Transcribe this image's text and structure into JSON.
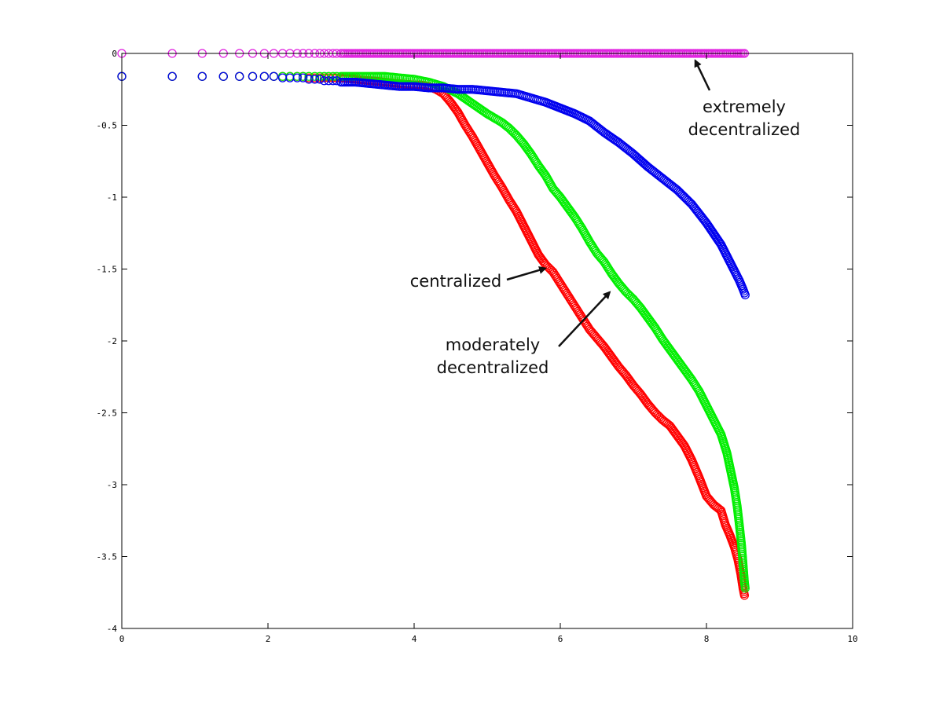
{
  "chart_data": {
    "type": "scatter",
    "title": "",
    "xlabel": "",
    "ylabel": "",
    "xlim": [
      0,
      10
    ],
    "ylim": [
      -4,
      0
    ],
    "xticks": [
      0,
      2,
      4,
      6,
      8,
      10
    ],
    "yticks": [
      0,
      -0.5,
      -1,
      -1.5,
      -2,
      -2.5,
      -3,
      -3.5,
      -4
    ],
    "xtick_labels": [
      "0",
      "2",
      "4",
      "6",
      "8",
      "10"
    ],
    "ytick_labels": [
      "0",
      "-0.5",
      "-1",
      "-1.5",
      "-2",
      "-2.5",
      "-3",
      "-3.5",
      "-4"
    ],
    "grid": false,
    "legend": "none",
    "marker": "open-circle",
    "series": [
      {
        "color": "#e020e0",
        "points": [
          [
            0,
            0
          ],
          [
            0.69,
            0
          ],
          [
            1.1,
            0
          ],
          [
            1.39,
            0
          ],
          [
            1.61,
            0
          ],
          [
            1.79,
            0
          ],
          [
            1.95,
            0
          ],
          [
            2.08,
            0
          ],
          [
            2.2,
            0
          ],
          [
            2.3,
            0
          ],
          [
            2.4,
            0
          ],
          [
            2.48,
            0
          ],
          [
            2.56,
            0
          ],
          [
            2.64,
            0
          ],
          [
            2.71,
            0
          ],
          [
            2.77,
            0
          ],
          [
            2.83,
            0
          ],
          [
            2.89,
            0
          ],
          [
            2.94,
            0
          ],
          [
            3.0,
            0
          ],
          [
            3.1,
            0
          ],
          [
            3.2,
            0
          ],
          [
            3.3,
            0
          ],
          [
            3.4,
            0
          ],
          [
            3.5,
            0
          ],
          [
            3.6,
            0
          ],
          [
            3.7,
            0
          ],
          [
            3.8,
            0
          ],
          [
            3.9,
            0
          ],
          [
            4.0,
            0
          ],
          [
            4.2,
            0
          ],
          [
            4.4,
            0
          ],
          [
            4.6,
            0
          ],
          [
            4.8,
            0
          ],
          [
            5.0,
            0
          ],
          [
            5.2,
            0
          ],
          [
            5.4,
            0
          ],
          [
            5.6,
            0
          ],
          [
            5.8,
            0
          ],
          [
            6.0,
            0
          ],
          [
            6.2,
            0
          ],
          [
            6.4,
            0
          ],
          [
            6.6,
            0
          ],
          [
            6.8,
            0
          ],
          [
            7.0,
            0
          ],
          [
            7.2,
            0
          ],
          [
            7.4,
            0
          ],
          [
            7.6,
            0
          ],
          [
            7.8,
            0
          ],
          [
            8.0,
            0
          ],
          [
            8.2,
            0
          ],
          [
            8.4,
            0
          ],
          [
            8.52,
            0
          ]
        ]
      },
      {
        "color": "#ff0000",
        "points": [
          [
            0,
            -0.16
          ],
          [
            0.69,
            -0.16
          ],
          [
            1.1,
            -0.16
          ],
          [
            1.39,
            -0.16
          ],
          [
            1.61,
            -0.16
          ],
          [
            1.79,
            -0.16
          ],
          [
            1.95,
            -0.16
          ],
          [
            2.08,
            -0.16
          ],
          [
            2.2,
            -0.16
          ],
          [
            2.3,
            -0.16
          ],
          [
            2.4,
            -0.16
          ],
          [
            2.48,
            -0.16
          ],
          [
            2.56,
            -0.17
          ],
          [
            2.64,
            -0.17
          ],
          [
            2.71,
            -0.17
          ],
          [
            2.77,
            -0.17
          ],
          [
            2.83,
            -0.17
          ],
          [
            2.89,
            -0.17
          ],
          [
            2.94,
            -0.17
          ],
          [
            3.0,
            -0.17
          ],
          [
            3.2,
            -0.18
          ],
          [
            3.4,
            -0.19
          ],
          [
            3.6,
            -0.2
          ],
          [
            3.8,
            -0.21
          ],
          [
            4.0,
            -0.22
          ],
          [
            4.1,
            -0.22
          ],
          [
            4.2,
            -0.23
          ],
          [
            4.3,
            -0.25
          ],
          [
            4.4,
            -0.28
          ],
          [
            4.5,
            -0.34
          ],
          [
            4.6,
            -0.41
          ],
          [
            4.7,
            -0.5
          ],
          [
            4.8,
            -0.58
          ],
          [
            4.9,
            -0.67
          ],
          [
            5.0,
            -0.76
          ],
          [
            5.1,
            -0.85
          ],
          [
            5.2,
            -0.93
          ],
          [
            5.3,
            -1.02
          ],
          [
            5.4,
            -1.1
          ],
          [
            5.5,
            -1.2
          ],
          [
            5.6,
            -1.3
          ],
          [
            5.7,
            -1.4
          ],
          [
            5.8,
            -1.47
          ],
          [
            5.9,
            -1.52
          ],
          [
            6.0,
            -1.6
          ],
          [
            6.1,
            -1.68
          ],
          [
            6.2,
            -1.76
          ],
          [
            6.3,
            -1.84
          ],
          [
            6.4,
            -1.92
          ],
          [
            6.5,
            -1.98
          ],
          [
            6.6,
            -2.04
          ],
          [
            6.7,
            -2.11
          ],
          [
            6.8,
            -2.18
          ],
          [
            6.9,
            -2.24
          ],
          [
            7.0,
            -2.31
          ],
          [
            7.1,
            -2.37
          ],
          [
            7.2,
            -2.44
          ],
          [
            7.3,
            -2.5
          ],
          [
            7.4,
            -2.55
          ],
          [
            7.5,
            -2.59
          ],
          [
            7.6,
            -2.66
          ],
          [
            7.7,
            -2.73
          ],
          [
            7.8,
            -2.83
          ],
          [
            7.9,
            -2.95
          ],
          [
            8.0,
            -3.08
          ],
          [
            8.1,
            -3.14
          ],
          [
            8.2,
            -3.18
          ],
          [
            8.26,
            -3.28
          ],
          [
            8.32,
            -3.35
          ],
          [
            8.38,
            -3.43
          ],
          [
            8.43,
            -3.52
          ],
          [
            8.47,
            -3.62
          ],
          [
            8.5,
            -3.72
          ],
          [
            8.52,
            -3.77
          ]
        ]
      },
      {
        "color": "#00ee00",
        "points": [
          [
            0,
            -0.16
          ],
          [
            0.69,
            -0.16
          ],
          [
            1.1,
            -0.16
          ],
          [
            1.39,
            -0.16
          ],
          [
            1.61,
            -0.16
          ],
          [
            1.79,
            -0.16
          ],
          [
            1.95,
            -0.16
          ],
          [
            2.08,
            -0.16
          ],
          [
            2.2,
            -0.16
          ],
          [
            2.3,
            -0.16
          ],
          [
            2.4,
            -0.16
          ],
          [
            2.48,
            -0.16
          ],
          [
            2.56,
            -0.16
          ],
          [
            2.64,
            -0.16
          ],
          [
            2.71,
            -0.16
          ],
          [
            2.77,
            -0.16
          ],
          [
            2.83,
            -0.16
          ],
          [
            2.89,
            -0.16
          ],
          [
            2.94,
            -0.16
          ],
          [
            3.0,
            -0.16
          ],
          [
            3.2,
            -0.16
          ],
          [
            3.4,
            -0.16
          ],
          [
            3.6,
            -0.16
          ],
          [
            3.8,
            -0.17
          ],
          [
            4.0,
            -0.18
          ],
          [
            4.2,
            -0.2
          ],
          [
            4.4,
            -0.23
          ],
          [
            4.6,
            -0.28
          ],
          [
            4.8,
            -0.35
          ],
          [
            5.0,
            -0.42
          ],
          [
            5.2,
            -0.48
          ],
          [
            5.3,
            -0.52
          ],
          [
            5.4,
            -0.57
          ],
          [
            5.5,
            -0.63
          ],
          [
            5.6,
            -0.7
          ],
          [
            5.7,
            -0.78
          ],
          [
            5.8,
            -0.85
          ],
          [
            5.9,
            -0.94
          ],
          [
            6.0,
            -1.0
          ],
          [
            6.1,
            -1.07
          ],
          [
            6.2,
            -1.14
          ],
          [
            6.3,
            -1.22
          ],
          [
            6.4,
            -1.31
          ],
          [
            6.5,
            -1.39
          ],
          [
            6.6,
            -1.45
          ],
          [
            6.7,
            -1.53
          ],
          [
            6.8,
            -1.6
          ],
          [
            6.9,
            -1.66
          ],
          [
            7.0,
            -1.71
          ],
          [
            7.1,
            -1.77
          ],
          [
            7.2,
            -1.84
          ],
          [
            7.3,
            -1.91
          ],
          [
            7.4,
            -1.99
          ],
          [
            7.5,
            -2.06
          ],
          [
            7.6,
            -2.13
          ],
          [
            7.7,
            -2.2
          ],
          [
            7.8,
            -2.27
          ],
          [
            7.9,
            -2.35
          ],
          [
            8.0,
            -2.45
          ],
          [
            8.1,
            -2.55
          ],
          [
            8.2,
            -2.65
          ],
          [
            8.28,
            -2.78
          ],
          [
            8.33,
            -2.9
          ],
          [
            8.38,
            -3.02
          ],
          [
            8.42,
            -3.15
          ],
          [
            8.45,
            -3.28
          ],
          [
            8.48,
            -3.42
          ],
          [
            8.5,
            -3.55
          ],
          [
            8.52,
            -3.68
          ],
          [
            8.53,
            -3.72
          ]
        ]
      },
      {
        "color": "#0000ee",
        "points": [
          [
            0,
            -0.16
          ],
          [
            0.69,
            -0.16
          ],
          [
            1.1,
            -0.16
          ],
          [
            1.39,
            -0.16
          ],
          [
            1.61,
            -0.16
          ],
          [
            1.79,
            -0.16
          ],
          [
            1.95,
            -0.16
          ],
          [
            2.08,
            -0.16
          ],
          [
            2.2,
            -0.17
          ],
          [
            2.3,
            -0.17
          ],
          [
            2.4,
            -0.17
          ],
          [
            2.48,
            -0.17
          ],
          [
            2.56,
            -0.18
          ],
          [
            2.64,
            -0.18
          ],
          [
            2.71,
            -0.18
          ],
          [
            2.77,
            -0.19
          ],
          [
            2.83,
            -0.19
          ],
          [
            2.89,
            -0.19
          ],
          [
            2.94,
            -0.19
          ],
          [
            3.0,
            -0.2
          ],
          [
            3.2,
            -0.2
          ],
          [
            3.4,
            -0.21
          ],
          [
            3.6,
            -0.22
          ],
          [
            3.8,
            -0.23
          ],
          [
            4.0,
            -0.23
          ],
          [
            4.2,
            -0.24
          ],
          [
            4.4,
            -0.24
          ],
          [
            4.6,
            -0.25
          ],
          [
            4.8,
            -0.25
          ],
          [
            5.0,
            -0.26
          ],
          [
            5.2,
            -0.27
          ],
          [
            5.4,
            -0.28
          ],
          [
            5.6,
            -0.31
          ],
          [
            5.8,
            -0.34
          ],
          [
            6.0,
            -0.38
          ],
          [
            6.2,
            -0.42
          ],
          [
            6.4,
            -0.47
          ],
          [
            6.6,
            -0.55
          ],
          [
            6.8,
            -0.62
          ],
          [
            7.0,
            -0.7
          ],
          [
            7.2,
            -0.79
          ],
          [
            7.4,
            -0.87
          ],
          [
            7.6,
            -0.95
          ],
          [
            7.8,
            -1.05
          ],
          [
            8.0,
            -1.18
          ],
          [
            8.2,
            -1.33
          ],
          [
            8.3,
            -1.43
          ],
          [
            8.4,
            -1.53
          ],
          [
            8.45,
            -1.58
          ],
          [
            8.5,
            -1.64
          ],
          [
            8.53,
            -1.68
          ]
        ]
      }
    ],
    "annotations": [
      {
        "lines": [
          "extremely",
          "decentralized"
        ],
        "target": [
          7.8,
          0
        ]
      },
      {
        "lines": [
          "centralized"
        ],
        "target": [
          5.9,
          -1.48
        ]
      },
      {
        "lines": [
          "moderately",
          "decentralized"
        ],
        "target": [
          6.75,
          -1.62
        ]
      }
    ]
  }
}
